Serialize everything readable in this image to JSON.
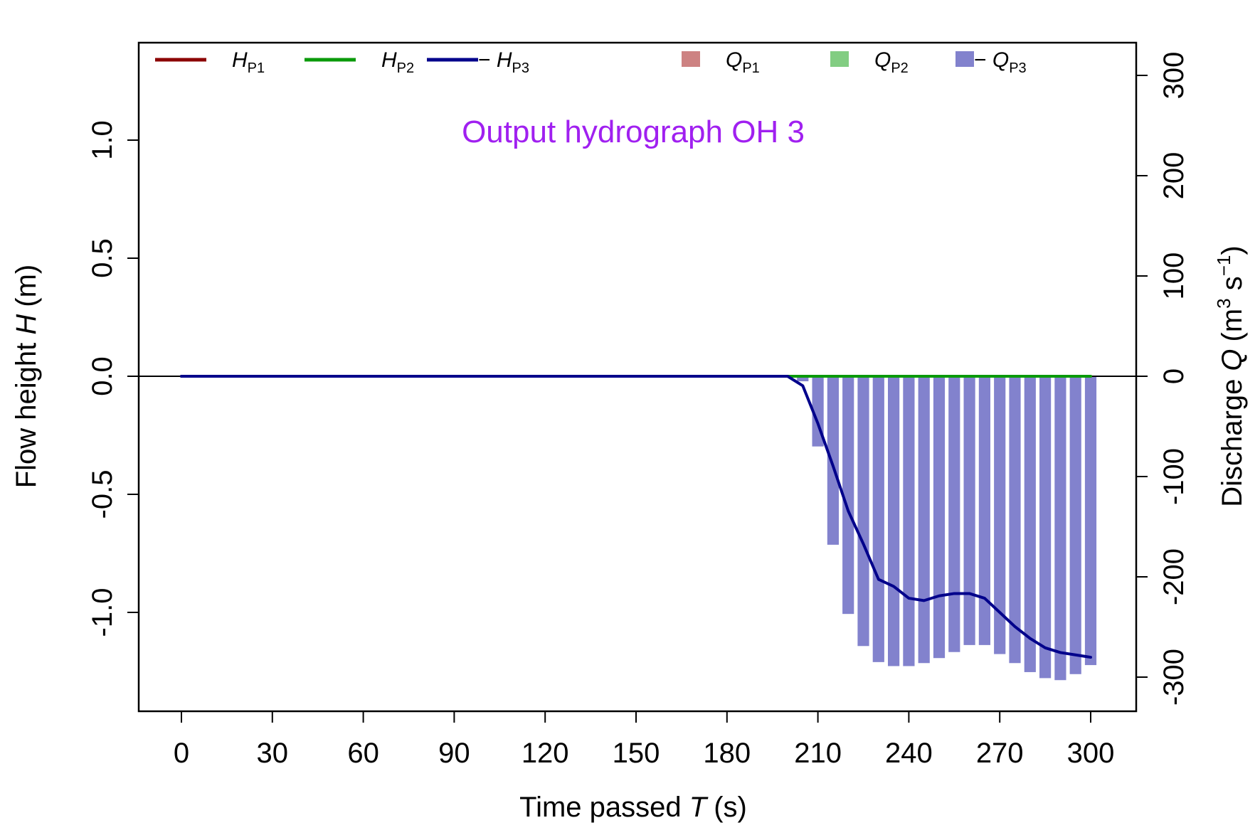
{
  "chart_data": {
    "type": "line+bar",
    "title": "Output hydrograph OH 3",
    "title_color": "#a020f0",
    "x_axis": {
      "label_prefix": "Time passed ",
      "label_symbol": "T",
      "label_unit": "(s)",
      "range": [
        -10,
        310
      ],
      "ticks": [
        0,
        30,
        60,
        90,
        120,
        150,
        180,
        210,
        240,
        270,
        300
      ],
      "tick_labels": [
        "0",
        "30",
        "60",
        "90",
        "120",
        "150",
        "180",
        "210",
        "240",
        "270",
        "300"
      ]
    },
    "y_left": {
      "label_prefix": "Flow height ",
      "label_symbol": "H",
      "label_unit": "(m)",
      "range": [
        -1.4,
        1.4
      ],
      "ticks": [
        1.0,
        0.5,
        0.0,
        -0.5,
        -1.0
      ],
      "tick_labels": [
        "1.0",
        "0.5",
        "0.0",
        "-0.5",
        "-1.0"
      ]
    },
    "y_right": {
      "label_prefix": "Discharge ",
      "label_symbol": "Q",
      "label_unit_base": "(m",
      "label_unit_sup1": "3",
      "label_unit_mid": " s",
      "label_unit_sup2": "−1",
      "label_unit_end": ")",
      "range": [
        -330,
        330
      ],
      "ticks": [
        300,
        200,
        100,
        0,
        -100,
        -200,
        -300
      ],
      "tick_labels": [
        "300",
        "200",
        "100",
        "0",
        "-100",
        "-200",
        "-300"
      ]
    },
    "legend": [
      {
        "kind": "line",
        "prefix": "",
        "symbol": "H",
        "sub": "P1",
        "color": "#8b0000"
      },
      {
        "kind": "line",
        "prefix": "",
        "symbol": "H",
        "sub": "P2",
        "color": "#0a9a0a"
      },
      {
        "kind": "line",
        "prefix": "− ",
        "symbol": "H",
        "sub": "P3",
        "color": "#00008b"
      },
      {
        "kind": "box",
        "prefix": "",
        "symbol": "Q",
        "sub": "P1",
        "color": "#cd8282"
      },
      {
        "kind": "box",
        "prefix": "",
        "symbol": "Q",
        "sub": "P2",
        "color": "#82cd82"
      },
      {
        "kind": "box",
        "prefix": "− ",
        "symbol": "Q",
        "sub": "P3",
        "color": "#8282cd"
      }
    ],
    "series_lines": [
      {
        "name": "H_P1",
        "color": "#8b0000",
        "x": [
          0,
          300
        ],
        "y": [
          0,
          0
        ]
      },
      {
        "name": "H_P2",
        "color": "#0a9a0a",
        "x": [
          0,
          300
        ],
        "y": [
          0,
          0
        ]
      },
      {
        "name": "-H_P3",
        "color": "#00008b",
        "x": [
          0,
          200,
          205,
          210,
          215,
          220,
          225,
          230,
          235,
          240,
          245,
          250,
          255,
          260,
          265,
          270,
          275,
          280,
          285,
          290,
          295,
          300
        ],
        "y": [
          0,
          0,
          -0.04,
          -0.2,
          -0.38,
          -0.57,
          -0.71,
          -0.86,
          -0.89,
          -0.94,
          -0.95,
          -0.93,
          -0.92,
          -0.92,
          -0.94,
          -1.0,
          -1.06,
          -1.11,
          -1.15,
          -1.17,
          -1.18,
          -1.19
        ]
      }
    ],
    "series_bars": [
      {
        "name": "-Q_P3",
        "color": "#8282cd",
        "x": [
          205,
          210,
          215,
          220,
          225,
          230,
          235,
          240,
          245,
          250,
          255,
          260,
          265,
          270,
          275,
          280,
          285,
          290,
          295,
          300
        ],
        "values": [
          -5,
          -70,
          -168,
          -237,
          -269,
          -285,
          -289,
          -289,
          -286,
          -281,
          -275,
          -268,
          -268,
          -277,
          -286,
          -295,
          -301,
          -303,
          -297,
          -288
        ]
      }
    ]
  }
}
